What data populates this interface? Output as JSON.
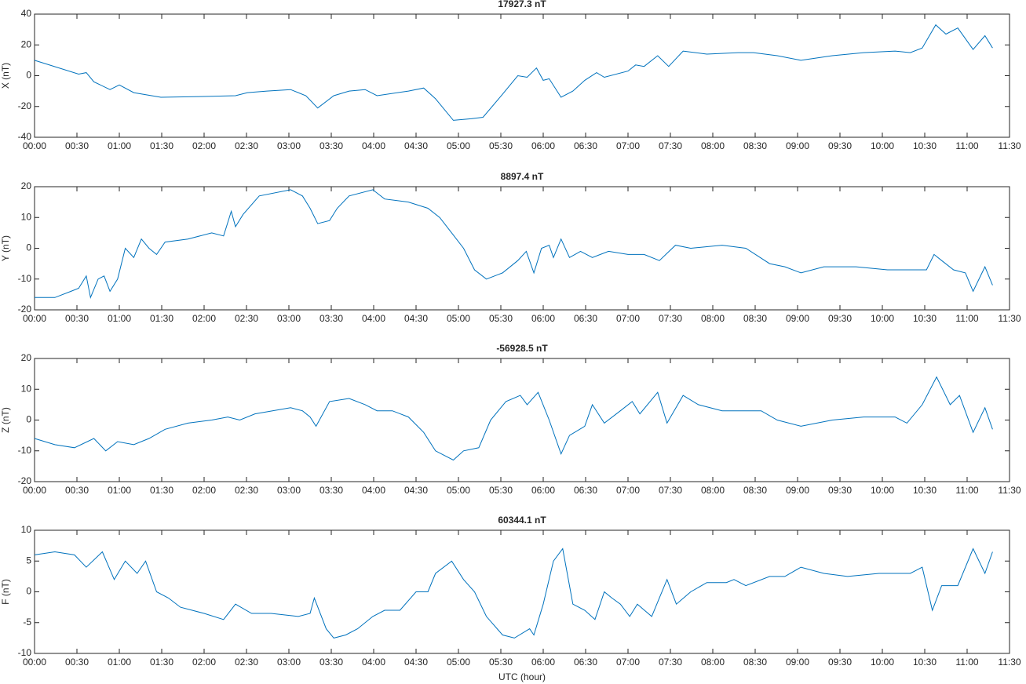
{
  "chart_data": [
    {
      "type": "line",
      "title": "17927.3 nT",
      "ylabel": "X (nT)",
      "color": "#0072bd",
      "x": [
        0,
        0.52,
        0.61,
        0.7,
        0.89,
        1.0,
        1.17,
        1.49,
        2.0,
        2.37,
        2.51,
        2.74,
        3.02,
        3.2,
        3.34,
        3.53,
        3.71,
        3.9,
        4.04,
        4.41,
        4.59,
        4.73,
        4.94,
        5.15,
        5.29,
        5.52,
        5.7,
        5.81,
        5.92,
        6.0,
        6.07,
        6.21,
        6.35,
        6.49,
        6.63,
        6.72,
        7.0,
        7.09,
        7.19,
        7.35,
        7.48,
        7.65,
        7.93,
        8.3,
        8.48,
        8.76,
        9.04,
        9.41,
        9.78,
        10.15,
        10.33,
        10.47,
        10.63,
        10.75,
        10.89,
        11.07,
        11.21,
        11.3
      ],
      "values": [
        10,
        1,
        2,
        -4,
        -9,
        -6,
        -11,
        -14,
        -13.5,
        -13,
        -11,
        -10,
        -9,
        -13,
        -21,
        -13,
        -10,
        -9,
        -13,
        -10,
        -8,
        -15,
        -29,
        -28,
        -27,
        -12,
        0,
        -1,
        5,
        -3,
        -2,
        -14,
        -10,
        -3,
        2,
        -1,
        3,
        7,
        6,
        13,
        6,
        16,
        14,
        15,
        15,
        13,
        10,
        13,
        15,
        16,
        15,
        18,
        33,
        27,
        31,
        17,
        26,
        18
      ],
      "xlim": [
        0,
        11.5
      ],
      "ylim": [
        -40,
        40
      ],
      "yticks": [
        -40,
        -20,
        0,
        20,
        40
      ],
      "xticks": [
        {
          "value": 0,
          "label": "00:00"
        },
        {
          "value": 0.5,
          "label": "00:30"
        },
        {
          "value": 1,
          "label": "01:00"
        },
        {
          "value": 1.5,
          "label": "01:30"
        },
        {
          "value": 2,
          "label": "02:00"
        },
        {
          "value": 2.5,
          "label": "02:30"
        },
        {
          "value": 3,
          "label": "03:00"
        },
        {
          "value": 3.5,
          "label": "03:30"
        },
        {
          "value": 4,
          "label": "04:00"
        },
        {
          "value": 4.5,
          "label": "04:30"
        },
        {
          "value": 5,
          "label": "05:00"
        },
        {
          "value": 5.5,
          "label": "05:30"
        },
        {
          "value": 6,
          "label": "06:00"
        },
        {
          "value": 6.5,
          "label": "06:30"
        },
        {
          "value": 7,
          "label": "07:00"
        },
        {
          "value": 7.5,
          "label": "07:30"
        },
        {
          "value": 8,
          "label": "08:00"
        },
        {
          "value": 8.5,
          "label": "08:30"
        },
        {
          "value": 9,
          "label": "09:00"
        },
        {
          "value": 9.5,
          "label": "09:30"
        },
        {
          "value": 10,
          "label": "10:00"
        },
        {
          "value": 10.5,
          "label": "10:30"
        },
        {
          "value": 11,
          "label": "11:00"
        },
        {
          "value": 11.5,
          "label": "11:30"
        }
      ]
    },
    {
      "type": "line",
      "title": "8897.4 nT",
      "ylabel": "Y (nT)",
      "color": "#0072bd",
      "x": [
        0,
        0.24,
        0.43,
        0.52,
        0.61,
        0.66,
        0.75,
        0.82,
        0.89,
        0.98,
        1.07,
        1.17,
        1.26,
        1.35,
        1.44,
        1.54,
        1.81,
        2.09,
        2.23,
        2.32,
        2.37,
        2.46,
        2.65,
        3.02,
        3.16,
        3.25,
        3.34,
        3.48,
        3.57,
        3.71,
        3.99,
        4.13,
        4.41,
        4.64,
        4.78,
        4.92,
        5.06,
        5.19,
        5.33,
        5.52,
        5.7,
        5.8,
        5.89,
        5.98,
        6.07,
        6.12,
        6.21,
        6.31,
        6.44,
        6.58,
        6.77,
        7.0,
        7.19,
        7.37,
        7.56,
        7.74,
        8.11,
        8.39,
        8.67,
        8.85,
        9.04,
        9.31,
        9.69,
        10.06,
        10.33,
        10.52,
        10.61,
        10.7,
        10.84,
        10.98,
        11.07,
        11.21,
        11.3
      ],
      "values": [
        -16,
        -16,
        -14,
        -13,
        -9,
        -16,
        -10,
        -9,
        -14,
        -10,
        0,
        -3,
        3,
        0,
        -2,
        2,
        3,
        5,
        4,
        12,
        7,
        11,
        17,
        19,
        17,
        13,
        8,
        9,
        13,
        17,
        19,
        16,
        15,
        13,
        10,
        5,
        0,
        -7,
        -10,
        -8,
        -4,
        -1,
        -8,
        0,
        1,
        -3,
        3,
        -3,
        -1,
        -3,
        -1,
        -2,
        -2,
        -4,
        1,
        0,
        1,
        0,
        -5,
        -6,
        -8,
        -6,
        -6,
        -7,
        -7,
        -7,
        -2,
        -4,
        -7,
        -8,
        -14,
        -6,
        -12
      ],
      "xlim": [
        0,
        11.5
      ],
      "ylim": [
        -20,
        20
      ],
      "yticks": [
        -20,
        -10,
        0,
        10,
        20
      ],
      "xticks": [
        {
          "value": 0,
          "label": "00:00"
        },
        {
          "value": 0.5,
          "label": "00:30"
        },
        {
          "value": 1,
          "label": "01:00"
        },
        {
          "value": 1.5,
          "label": "01:30"
        },
        {
          "value": 2,
          "label": "02:00"
        },
        {
          "value": 2.5,
          "label": "02:30"
        },
        {
          "value": 3,
          "label": "03:00"
        },
        {
          "value": 3.5,
          "label": "03:30"
        },
        {
          "value": 4,
          "label": "04:00"
        },
        {
          "value": 4.5,
          "label": "04:30"
        },
        {
          "value": 5,
          "label": "05:00"
        },
        {
          "value": 5.5,
          "label": "05:30"
        },
        {
          "value": 6,
          "label": "06:00"
        },
        {
          "value": 6.5,
          "label": "06:30"
        },
        {
          "value": 7,
          "label": "07:00"
        },
        {
          "value": 7.5,
          "label": "07:30"
        },
        {
          "value": 8,
          "label": "08:00"
        },
        {
          "value": 8.5,
          "label": "08:30"
        },
        {
          "value": 9,
          "label": "09:00"
        },
        {
          "value": 9.5,
          "label": "09:30"
        },
        {
          "value": 10,
          "label": "10:00"
        },
        {
          "value": 10.5,
          "label": "10:30"
        },
        {
          "value": 11,
          "label": "11:00"
        },
        {
          "value": 11.5,
          "label": "11:30"
        }
      ]
    },
    {
      "type": "line",
      "title": "-56928.5 nT",
      "ylabel": "Z (nT)",
      "color": "#0072bd",
      "x": [
        0,
        0.24,
        0.47,
        0.7,
        0.84,
        0.98,
        1.17,
        1.35,
        1.54,
        1.81,
        2.09,
        2.28,
        2.42,
        2.6,
        3.02,
        3.16,
        3.25,
        3.32,
        3.48,
        3.71,
        3.9,
        4.04,
        4.22,
        4.41,
        4.59,
        4.73,
        4.94,
        5.06,
        5.24,
        5.38,
        5.56,
        5.73,
        5.81,
        5.94,
        6.07,
        6.21,
        6.31,
        6.49,
        6.58,
        6.72,
        6.91,
        7.05,
        7.14,
        7.35,
        7.46,
        7.65,
        7.83,
        8.11,
        8.39,
        8.57,
        8.76,
        9.04,
        9.41,
        9.78,
        10.15,
        10.29,
        10.47,
        10.64,
        10.8,
        10.91,
        11.07,
        11.21,
        11.3
      ],
      "values": [
        -6,
        -8,
        -9,
        -6,
        -10,
        -7,
        -8,
        -6,
        -3,
        -1,
        0,
        1,
        0,
        2,
        4,
        3,
        1,
        -2,
        6,
        7,
        5,
        3,
        3,
        1,
        -4,
        -10,
        -13,
        -10,
        -9,
        0,
        6,
        8,
        5,
        9,
        0,
        -11,
        -5,
        -2,
        5,
        -1,
        3,
        6,
        2,
        9,
        -1,
        8,
        5,
        3,
        3,
        3,
        0,
        -2,
        0,
        1,
        1,
        -1,
        5,
        14,
        5,
        8,
        -4,
        4,
        -3
      ],
      "xlim": [
        0,
        11.5
      ],
      "ylim": [
        -20,
        20
      ],
      "yticks": [
        -20,
        -10,
        0,
        10,
        20
      ],
      "xticks": [
        {
          "value": 0,
          "label": "00:00"
        },
        {
          "value": 0.5,
          "label": "00:30"
        },
        {
          "value": 1,
          "label": "01:00"
        },
        {
          "value": 1.5,
          "label": "01:30"
        },
        {
          "value": 2,
          "label": "02:00"
        },
        {
          "value": 2.5,
          "label": "02:30"
        },
        {
          "value": 3,
          "label": "03:00"
        },
        {
          "value": 3.5,
          "label": "03:30"
        },
        {
          "value": 4,
          "label": "04:00"
        },
        {
          "value": 4.5,
          "label": "04:30"
        },
        {
          "value": 5,
          "label": "05:00"
        },
        {
          "value": 5.5,
          "label": "05:30"
        },
        {
          "value": 6,
          "label": "06:00"
        },
        {
          "value": 6.5,
          "label": "06:30"
        },
        {
          "value": 7,
          "label": "07:00"
        },
        {
          "value": 7.5,
          "label": "07:30"
        },
        {
          "value": 8,
          "label": "08:00"
        },
        {
          "value": 8.5,
          "label": "08:30"
        },
        {
          "value": 9,
          "label": "09:00"
        },
        {
          "value": 9.5,
          "label": "09:30"
        },
        {
          "value": 10,
          "label": "10:00"
        },
        {
          "value": 10.5,
          "label": "10:30"
        },
        {
          "value": 11,
          "label": "11:00"
        },
        {
          "value": 11.5,
          "label": "11:30"
        }
      ]
    },
    {
      "type": "line",
      "title": "60344.1 nT",
      "ylabel": "F (nT)",
      "xlabel": "UTC (hour)",
      "color": "#0072bd",
      "x": [
        0,
        0.24,
        0.47,
        0.61,
        0.8,
        0.94,
        1.07,
        1.21,
        1.31,
        1.44,
        1.58,
        1.72,
        2.0,
        2.23,
        2.37,
        2.56,
        2.79,
        3.11,
        3.25,
        3.3,
        3.44,
        3.53,
        3.67,
        3.81,
        3.99,
        4.13,
        4.31,
        4.5,
        4.64,
        4.73,
        4.92,
        5.06,
        5.19,
        5.33,
        5.52,
        5.66,
        5.84,
        5.89,
        6.0,
        6.12,
        6.23,
        6.35,
        6.49,
        6.61,
        6.72,
        6.81,
        6.91,
        7.02,
        7.11,
        7.28,
        7.46,
        7.57,
        7.74,
        7.93,
        8.16,
        8.25,
        8.39,
        8.67,
        8.85,
        9.04,
        9.31,
        9.59,
        9.96,
        10.33,
        10.47,
        10.59,
        10.7,
        10.89,
        11.07,
        11.21,
        11.3
      ],
      "values": [
        6,
        6.5,
        6,
        4,
        6.5,
        2,
        5,
        3,
        5,
        0,
        -1,
        -2.5,
        -3.5,
        -4.5,
        -2,
        -3.5,
        -3.5,
        -4,
        -3.5,
        -1,
        -6,
        -7.5,
        -7,
        -6,
        -4,
        -3,
        -3,
        0,
        0,
        3,
        5,
        2,
        0,
        -4,
        -7,
        -7.5,
        -6,
        -7,
        -2,
        5,
        7,
        -2,
        -3,
        -4.5,
        0,
        -1,
        -2,
        -4,
        -2,
        -4,
        2,
        -2,
        0,
        1.5,
        1.5,
        2,
        1,
        2.5,
        2.5,
        4,
        3,
        2.5,
        3,
        3,
        4,
        -3,
        1,
        1,
        7,
        3,
        6.5
      ],
      "xlim": [
        0,
        11.5
      ],
      "ylim": [
        -10,
        10
      ],
      "yticks": [
        -10,
        -5,
        0,
        5,
        10
      ],
      "xticks": [
        {
          "value": 0,
          "label": "00:00"
        },
        {
          "value": 0.5,
          "label": "00:30"
        },
        {
          "value": 1,
          "label": "01:00"
        },
        {
          "value": 1.5,
          "label": "01:30"
        },
        {
          "value": 2,
          "label": "02:00"
        },
        {
          "value": 2.5,
          "label": "02:30"
        },
        {
          "value": 3,
          "label": "03:00"
        },
        {
          "value": 3.5,
          "label": "03:30"
        },
        {
          "value": 4,
          "label": "04:00"
        },
        {
          "value": 4.5,
          "label": "04:30"
        },
        {
          "value": 5,
          "label": "05:00"
        },
        {
          "value": 5.5,
          "label": "05:30"
        },
        {
          "value": 6,
          "label": "06:00"
        },
        {
          "value": 6.5,
          "label": "06:30"
        },
        {
          "value": 7,
          "label": "07:00"
        },
        {
          "value": 7.5,
          "label": "07:30"
        },
        {
          "value": 8,
          "label": "08:00"
        },
        {
          "value": 8.5,
          "label": "08:30"
        },
        {
          "value": 9,
          "label": "09:00"
        },
        {
          "value": 9.5,
          "label": "09:30"
        },
        {
          "value": 10,
          "label": "10:00"
        },
        {
          "value": 10.5,
          "label": "10:30"
        },
        {
          "value": 11,
          "label": "11:00"
        },
        {
          "value": 11.5,
          "label": "11:30"
        }
      ]
    }
  ]
}
